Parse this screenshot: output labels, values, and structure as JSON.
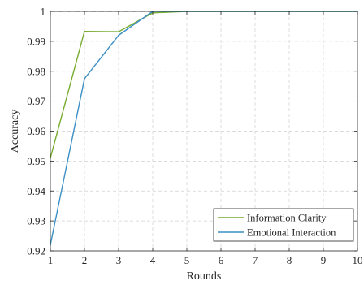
{
  "chart_data": {
    "type": "line",
    "title": "",
    "xlabel": "Rounds",
    "ylabel": "Accuracy",
    "x": [
      1,
      2,
      3,
      4,
      5,
      6,
      7,
      8,
      9,
      10
    ],
    "xlim": [
      1,
      10
    ],
    "ylim": [
      0.92,
      1.0
    ],
    "xticks": [
      "1",
      "2",
      "3",
      "4",
      "5",
      "6",
      "7",
      "8",
      "9",
      "10"
    ],
    "yticks": [
      "0.92",
      "0.93",
      "0.94",
      "0.95",
      "0.96",
      "0.97",
      "0.98",
      "0.99",
      "1"
    ],
    "grid": true,
    "legend_position": "bottom-right",
    "reference_line": {
      "y": 1.0,
      "style": "dashed",
      "color": "#333333"
    },
    "series": [
      {
        "name": "Information Clarity",
        "color": "#77ac30",
        "values": [
          0.951,
          0.9933,
          0.9932,
          0.9995,
          1.0,
          1.0,
          1.0,
          1.0,
          1.0,
          1.0
        ]
      },
      {
        "name": "Emotional Interaction",
        "color": "#3a8fc4",
        "values": [
          0.922,
          0.9775,
          0.992,
          1.0,
          1.0,
          1.0,
          1.0,
          1.0,
          1.0,
          1.0
        ]
      }
    ]
  }
}
